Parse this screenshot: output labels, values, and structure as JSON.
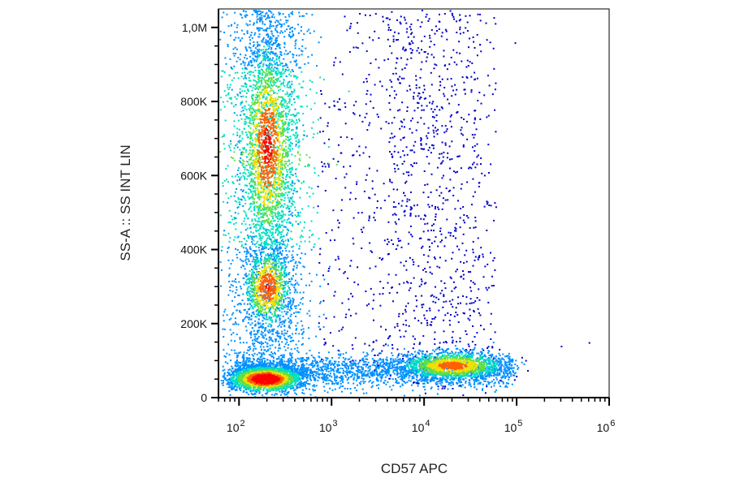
{
  "chart_data": {
    "type": "scatter",
    "title": "",
    "xlabel": "CD57 APC",
    "ylabel": "SS-A :: SS INT LIN",
    "x_scale": "log",
    "x_range": [
      60,
      1000000
    ],
    "y_range": [
      0,
      1050000
    ],
    "x_ticks": [
      {
        "value": 100,
        "base": "10",
        "exp": "2"
      },
      {
        "value": 1000,
        "base": "10",
        "exp": "3"
      },
      {
        "value": 10000,
        "base": "10",
        "exp": "4"
      },
      {
        "value": 100000,
        "base": "10",
        "exp": "5"
      },
      {
        "value": 1000000,
        "base": "10",
        "exp": "6"
      }
    ],
    "y_ticks": [
      {
        "value": 0,
        "label": "0"
      },
      {
        "value": 200000,
        "label": "200K"
      },
      {
        "value": 400000,
        "label": "400K"
      },
      {
        "value": 600000,
        "label": "600K"
      },
      {
        "value": 800000,
        "label": "800K"
      },
      {
        "value": 1000000,
        "label": "1,0M"
      }
    ],
    "grid": false,
    "legend": "none",
    "colormap": [
      "#0000c8",
      "#0090ff",
      "#00e0c0",
      "#60e040",
      "#f0e000",
      "#ff6000",
      "#ff0000"
    ],
    "populations": [
      {
        "center_x": 200,
        "center_y": 55000,
        "spread_logx": 0.22,
        "spread_y": 22000,
        "peak_density": 1.0
      },
      {
        "center_x": 200,
        "center_y": 660000,
        "spread_logx": 0.16,
        "spread_y": 150000,
        "peak_density": 0.55
      },
      {
        "center_x": 200,
        "center_y": 300000,
        "spread_logx": 0.15,
        "spread_y": 55000,
        "peak_density": 0.5
      },
      {
        "center_x": 20000,
        "center_y": 90000,
        "spread_logx": 0.3,
        "spread_y": 22000,
        "peak_density": 0.55
      }
    ]
  }
}
